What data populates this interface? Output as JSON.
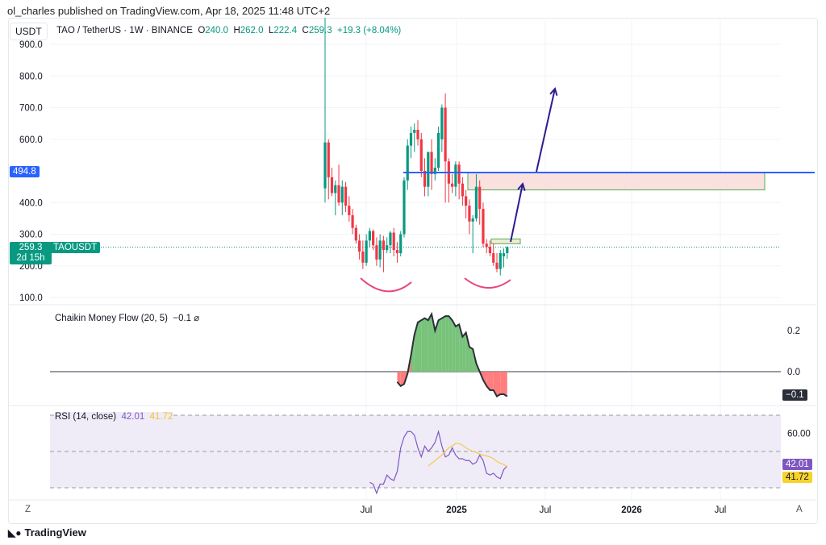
{
  "publisher": "ol_charles published on TradingView.com, Apr 18, 2025 11:48 UTC+2",
  "currency": "USDT",
  "legend": {
    "symbol": "TAO / TetherUS · 1W · BINANCE",
    "o_label": "O",
    "o": "240.0",
    "h_label": "H",
    "h": "262.0",
    "l_label": "L",
    "l": "222.4",
    "c_label": "C",
    "c": "259.3",
    "change": "+19.3 (+8.04%)"
  },
  "price_tags": {
    "line_level": "494.8",
    "last_price": "259.3",
    "countdown": "2d 15h",
    "symbol_tag": "TAOUSDT"
  },
  "cmf": {
    "title": "Chaikin Money Flow (20, 5)",
    "value": "−0.1",
    "value_tag": "−0.1"
  },
  "rsi": {
    "title": "RSI (14, close)",
    "value": "42.01",
    "ma_value": "41.72"
  },
  "bottom": {
    "left_button": "Z",
    "right_button": "A",
    "logo": "TradingView"
  },
  "colors": {
    "up": "#089981",
    "down": "#f23645",
    "level_line": "#2962ff",
    "arrow": "#2e1b8f",
    "zone_fill": "#fbe0e0",
    "zone_border": "#4caf50",
    "rsi": "#7e57c2",
    "rsi_ma": "#f7c948",
    "cmf_pos": "#78c27a",
    "cmf_neg": "#ff7d7d"
  },
  "chart_data": [
    {
      "type": "candlestick",
      "y_ticks": [
        "900.0",
        "800.0",
        "700.0",
        "600.0",
        "400.0",
        "300.0",
        "200.0",
        "100.0"
      ],
      "ylim": [
        100,
        900
      ],
      "x_ticks": [
        "Jul",
        "2025",
        "Jul",
        "2026",
        "Jul"
      ],
      "x_start": "2024-04-08",
      "interval": "1W",
      "ohlc": [
        [
          445,
          1000,
          400,
          590
        ],
        [
          590,
          600,
          410,
          480
        ],
        [
          480,
          510,
          420,
          430
        ],
        [
          430,
          470,
          360,
          455
        ],
        [
          455,
          520,
          390,
          400
        ],
        [
          400,
          470,
          360,
          450
        ],
        [
          450,
          465,
          370,
          390
        ],
        [
          390,
          420,
          340,
          360
        ],
        [
          360,
          380,
          300,
          320
        ],
        [
          320,
          330,
          270,
          280
        ],
        [
          280,
          300,
          220,
          245
        ],
        [
          245,
          280,
          190,
          210
        ],
        [
          210,
          300,
          200,
          280
        ],
        [
          280,
          320,
          260,
          310
        ],
        [
          310,
          315,
          250,
          265
        ],
        [
          265,
          290,
          200,
          220
        ],
        [
          220,
          300,
          195,
          280
        ],
        [
          280,
          295,
          180,
          250
        ],
        [
          250,
          290,
          240,
          265
        ],
        [
          265,
          310,
          240,
          305
        ],
        [
          305,
          320,
          230,
          250
        ],
        [
          250,
          275,
          210,
          240
        ],
        [
          240,
          310,
          230,
          300
        ],
        [
          300,
          480,
          290,
          470
        ],
        [
          470,
          600,
          440,
          580
        ],
        [
          580,
          640,
          540,
          620
        ],
        [
          620,
          650,
          560,
          630
        ],
        [
          630,
          660,
          580,
          600
        ],
        [
          600,
          620,
          480,
          500
        ],
        [
          500,
          540,
          420,
          450
        ],
        [
          450,
          560,
          420,
          560
        ],
        [
          560,
          600,
          440,
          490
        ],
        [
          490,
          540,
          470,
          510
        ],
        [
          510,
          640,
          500,
          620
        ],
        [
          600,
          710,
          560,
          700
        ],
        [
          700,
          745,
          400,
          530
        ],
        [
          530,
          540,
          400,
          460
        ],
        [
          460,
          490,
          430,
          450
        ],
        [
          450,
          530,
          420,
          520
        ],
        [
          520,
          530,
          410,
          460
        ],
        [
          460,
          480,
          390,
          420
        ],
        [
          420,
          440,
          350,
          390
        ],
        [
          390,
          410,
          300,
          340
        ],
        [
          340,
          360,
          240,
          350
        ],
        [
          350,
          490,
          340,
          450
        ],
        [
          450,
          470,
          330,
          380
        ],
        [
          380,
          400,
          260,
          270
        ],
        [
          270,
          285,
          240,
          260
        ],
        [
          260,
          280,
          230,
          240
        ],
        [
          240,
          270,
          200,
          210
        ],
        [
          210,
          240,
          180,
          190
        ],
        [
          190,
          250,
          170,
          240
        ],
        [
          230,
          255,
          195,
          240
        ],
        [
          240,
          262,
          222.4,
          259.3
        ]
      ],
      "level": 494.8,
      "zone": [
        440,
        494.8
      ],
      "small_zone": [
        270,
        285
      ]
    },
    {
      "type": "area",
      "name": "Chaikin Money Flow (20, 5)",
      "y_ticks": [
        "0.2",
        "0.0"
      ],
      "values": [
        -0.05,
        -0.07,
        -0.06,
        -0.01,
        0.08,
        0.18,
        0.24,
        0.25,
        0.26,
        0.25,
        0.28,
        0.2,
        0.25,
        0.26,
        0.27,
        0.27,
        0.25,
        0.22,
        0.23,
        0.17,
        0.19,
        0.12,
        0.11,
        0.04,
        0.0,
        -0.04,
        -0.07,
        -0.09,
        -0.09,
        -0.12,
        -0.11,
        -0.11,
        -0.12
      ]
    },
    {
      "type": "line",
      "name": "RSI (14, close)",
      "y_ticks": [
        "60.00"
      ],
      "bands": [
        30,
        50,
        70
      ],
      "rsi": [
        33,
        32,
        27,
        32,
        32,
        37,
        35,
        34,
        39,
        52,
        58,
        61,
        61,
        59,
        52,
        47,
        53,
        50,
        52,
        55,
        61,
        53,
        47,
        48,
        52,
        48,
        46,
        46,
        45,
        45,
        43,
        44,
        48,
        45,
        38,
        37,
        38,
        36,
        35,
        40,
        42.01
      ],
      "ma": [
        42,
        43.5,
        45,
        46.5,
        48,
        50,
        52,
        53,
        54.5,
        54.3,
        53.5,
        52,
        51,
        50,
        49.5,
        48.5,
        48,
        47.5,
        47,
        46,
        44.5,
        43.5,
        42.8,
        41.72
      ]
    }
  ]
}
